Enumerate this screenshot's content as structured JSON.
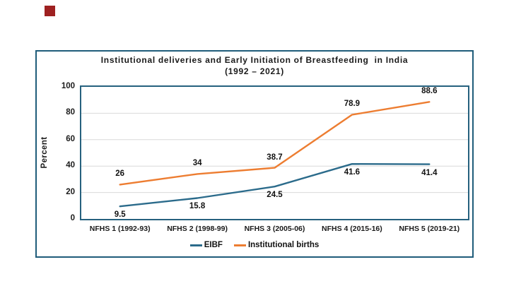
{
  "decor": {
    "corner_square_color": "#9E2121"
  },
  "chart": {
    "frame_color": "#1F5C7A",
    "plot_border_color": "#26617E",
    "gridline_color": "#D9D9D9",
    "text_color": "#1A1A1A",
    "title_line1": "Institutional deliveries and Early Initiation of Breastfeeding  in India",
    "title_line2": "(1992 – 2021)"
  },
  "chart_data": {
    "type": "line",
    "title": "Institutional deliveries and Early Initiation of Breastfeeding in India (1992 – 2021)",
    "xlabel": "",
    "ylabel": "Percent",
    "ylim": [
      0,
      100
    ],
    "yticks": [
      0,
      20,
      40,
      60,
      80,
      100
    ],
    "grid": true,
    "legend_position": "bottom",
    "categories": [
      "NFHS 1 (1992-93)",
      "NFHS 2 (1998-99)",
      "NFHS 3 (2005-06)",
      "NFHS 4 (2015-16)",
      "NFHS 5 (2019-21)"
    ],
    "series": [
      {
        "name": "EIBF",
        "color": "#2B6B8B",
        "values": [
          9.5,
          15.8,
          24.5,
          41.6,
          41.4
        ],
        "data_label_position": "below"
      },
      {
        "name": "Institutional births",
        "color": "#ED7D31",
        "values": [
          26,
          34,
          38.7,
          78.9,
          88.6
        ],
        "data_label_position": "above"
      }
    ]
  }
}
